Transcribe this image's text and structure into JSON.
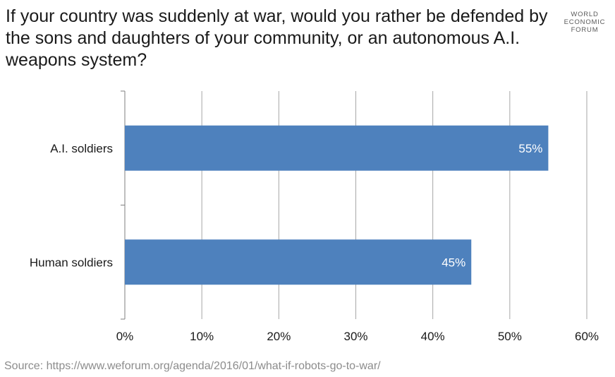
{
  "title": "If your country was suddenly at war, would you rather be defended by the sons and daughters of your community, or an autonomous A.I. weapons system?",
  "logo": {
    "lines": [
      "WORLD",
      "ECONOMIC",
      "FORUM"
    ]
  },
  "source": "Source: https://www.weforum.org/agenda/2016/01/what-if-robots-go-to-war/",
  "colors": {
    "bar": "#4e81bd",
    "grid": "#a6a6a6",
    "axis": "#7f7f7f"
  },
  "chart_data": {
    "type": "bar",
    "orientation": "horizontal",
    "categories": [
      "A.I. soldiers",
      "Human soldiers"
    ],
    "values": [
      55,
      45
    ],
    "value_labels": [
      "55%",
      "45%"
    ],
    "xlim": [
      0,
      60
    ],
    "x_ticks": [
      0,
      10,
      20,
      30,
      40,
      50,
      60
    ],
    "x_tick_labels": [
      "0%",
      "10%",
      "20%",
      "30%",
      "40%",
      "50%",
      "60%"
    ],
    "grid": true,
    "legend": false
  }
}
